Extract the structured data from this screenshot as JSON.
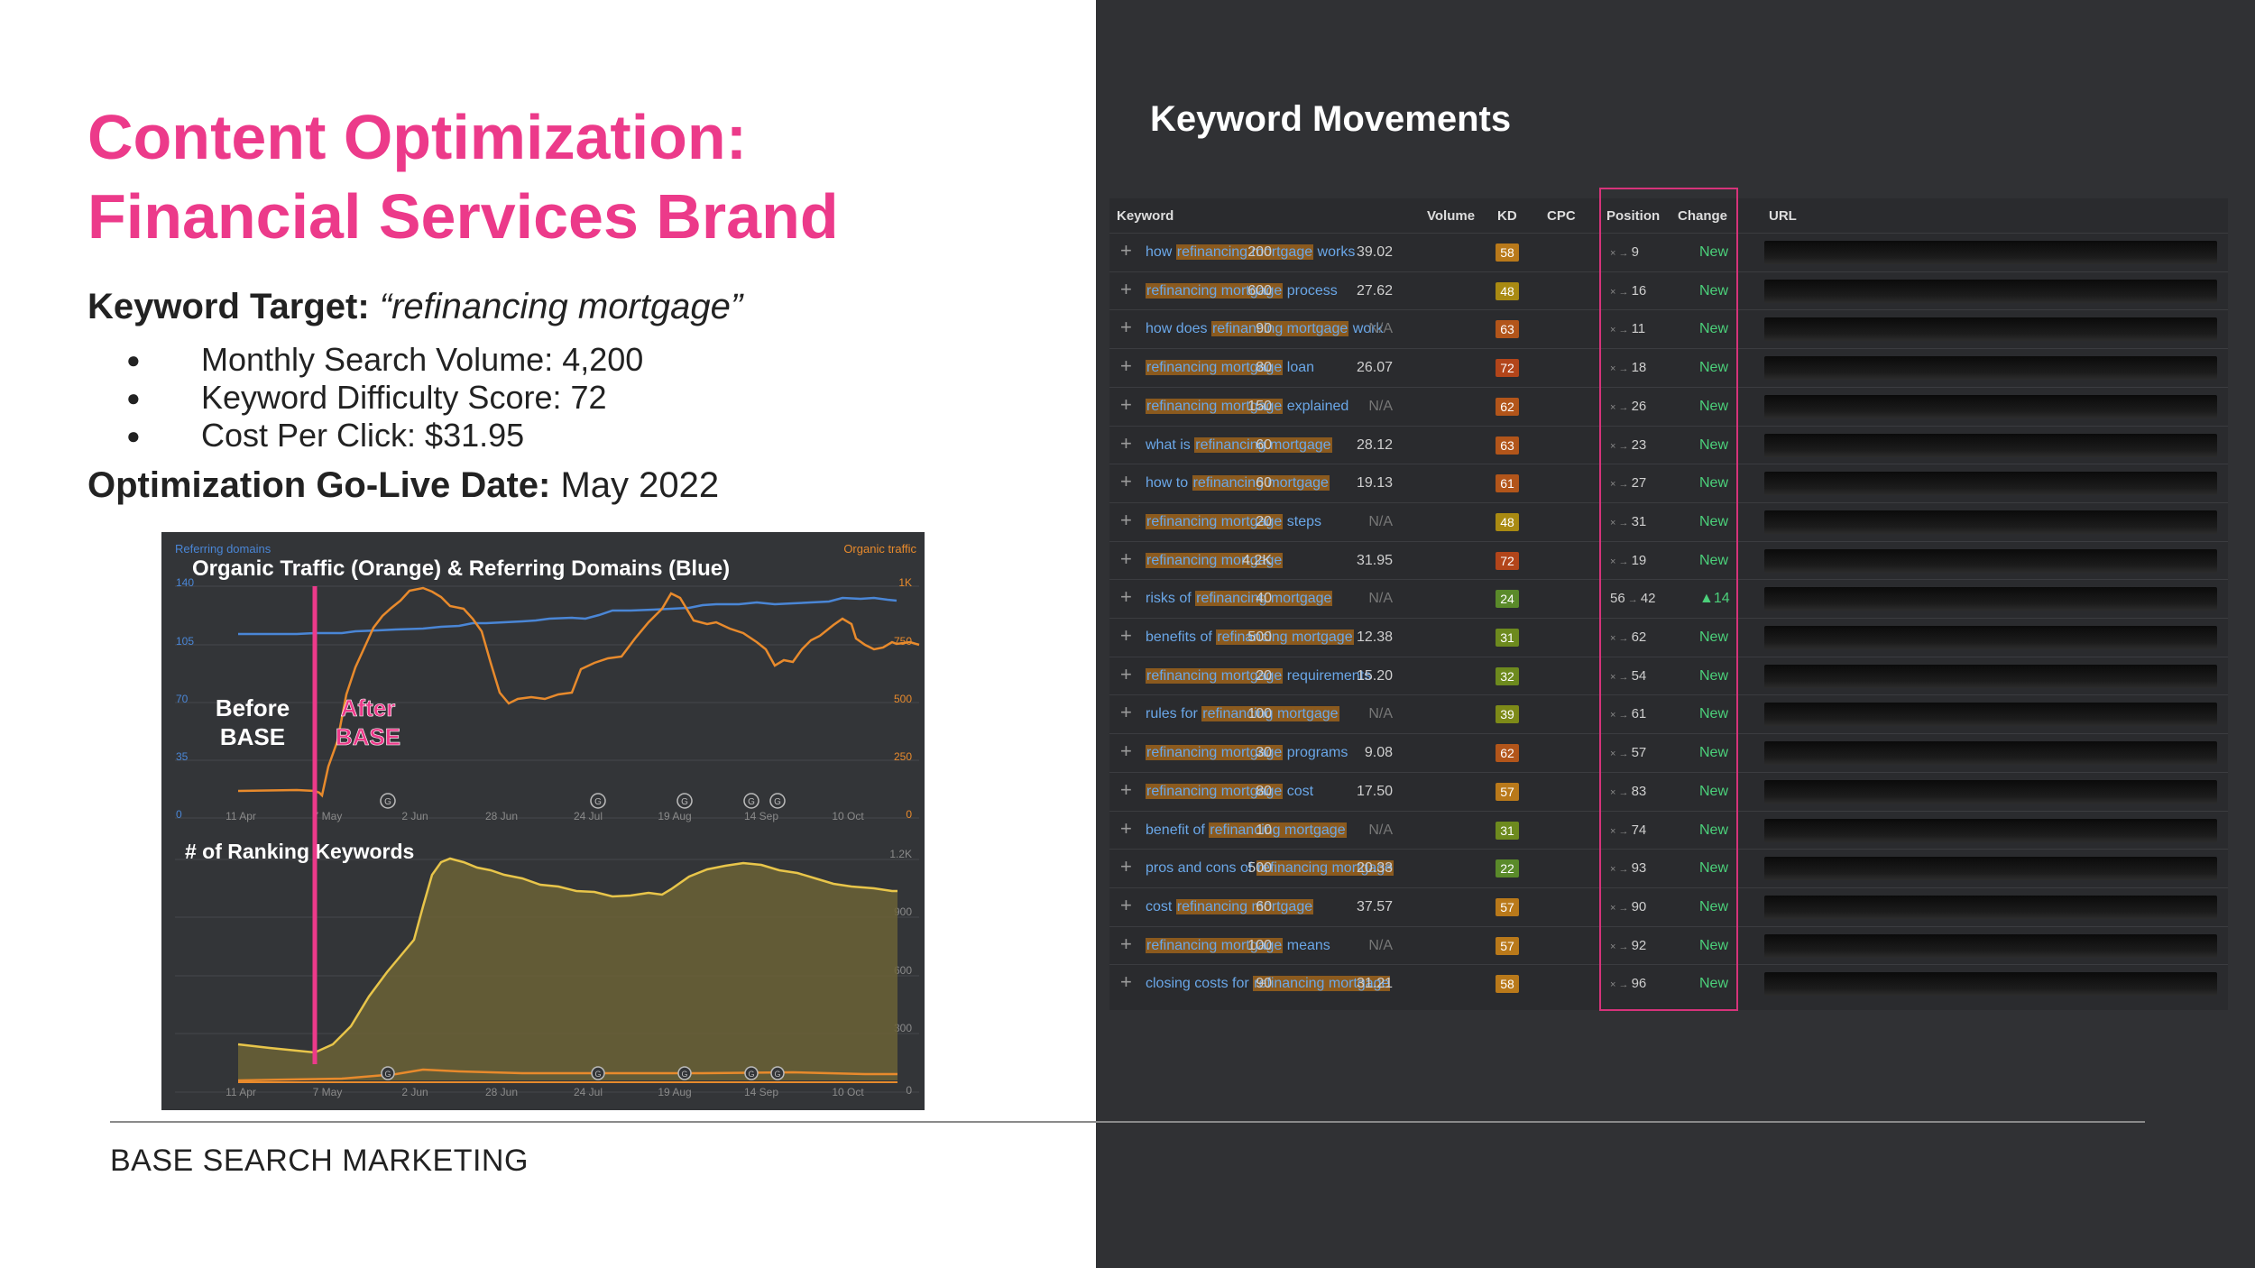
{
  "slide": {
    "title_line1": "Content Optimization:",
    "title_line2": "Financial Services Brand",
    "keyword_target_label": "Keyword Target: ",
    "keyword_target_value": "“refinancing mortgage”",
    "bullets": [
      "Monthly Search Volume: 4,200",
      "Keyword Difficulty Score: 72",
      "Cost Per Click: $31.95"
    ],
    "golive_label": "Optimization Go-Live Date:",
    "golive_value": " May 2022",
    "footer": "BASE SEARCH MARKETING"
  },
  "traffic_chart": {
    "label_left": "Referring domains",
    "label_right": "Organic traffic",
    "title": "Organic Traffic (Orange) & Referring Domains (Blue)",
    "before_label": "Before\nBASE",
    "after_label": "After\nBASE",
    "left_ticks": [
      "140",
      "105",
      "70",
      "35",
      "0"
    ],
    "right_ticks": [
      "1K",
      "750",
      "500",
      "250",
      "0"
    ],
    "x_ticks": [
      "11 Apr",
      "7 May",
      "2 Jun",
      "28 Jun",
      "24 Jul",
      "19 Aug",
      "14 Sep",
      "10 Oct"
    ],
    "colors": {
      "traffic": "#e88a2c",
      "domains": "#4a86d6",
      "marker": "#ec3a8a"
    }
  },
  "keywords_chart": {
    "title": "# of Ranking Keywords",
    "right_ticks": [
      "1.2K",
      "900",
      "600",
      "300",
      "0"
    ],
    "x_ticks": [
      "11 Apr",
      "7 May",
      "2 Jun",
      "28 Jun",
      "24 Jul",
      "19 Aug",
      "14 Sep",
      "10 Oct"
    ],
    "colors": {
      "area": "#e8c54a",
      "lower": "#e88a2c"
    }
  },
  "keyword_movements": {
    "title": "Keyword Movements",
    "columns": [
      "Keyword",
      "Volume",
      "KD",
      "CPC",
      "Position",
      "Change",
      "URL"
    ],
    "rows": [
      {
        "pre": "how ",
        "hl": "refinancing mortgage",
        "post": " works",
        "volume": "200",
        "kd": "58",
        "kd_color": "#b9791a",
        "cpc": "39.02",
        "from": "×",
        "to": "9",
        "change": "New"
      },
      {
        "pre": "",
        "hl": "refinancing mortgage",
        "post": " process",
        "volume": "600",
        "kd": "48",
        "kd_color": "#a98a12",
        "cpc": "27.62",
        "from": "×",
        "to": "16",
        "change": "New"
      },
      {
        "pre": "how does ",
        "hl": "refinancing mortgage",
        "post": " work",
        "volume": "90",
        "kd": "63",
        "kd_color": "#b2551a",
        "cpc": "N/A",
        "from": "×",
        "to": "11",
        "change": "New"
      },
      {
        "pre": "",
        "hl": "refinancing mortgage",
        "post": " loan",
        "volume": "80",
        "kd": "72",
        "kd_color": "#b2451a",
        "cpc": "26.07",
        "from": "×",
        "to": "18",
        "change": "New"
      },
      {
        "pre": "",
        "hl": "refinancing mortgage",
        "post": " explained",
        "volume": "150",
        "kd": "62",
        "kd_color": "#b2551a",
        "cpc": "N/A",
        "from": "×",
        "to": "26",
        "change": "New"
      },
      {
        "pre": "what is ",
        "hl": "refinancing mortgage",
        "post": "",
        "volume": "60",
        "kd": "63",
        "kd_color": "#b2551a",
        "cpc": "28.12",
        "from": "×",
        "to": "23",
        "change": "New"
      },
      {
        "pre": "how to ",
        "hl": "refinancing mortgage",
        "post": "",
        "volume": "60",
        "kd": "61",
        "kd_color": "#b2551a",
        "cpc": "19.13",
        "from": "×",
        "to": "27",
        "change": "New"
      },
      {
        "pre": "",
        "hl": "refinancing mortgage",
        "post": " steps",
        "volume": "20",
        "kd": "48",
        "kd_color": "#a98a12",
        "cpc": "N/A",
        "from": "×",
        "to": "31",
        "change": "New"
      },
      {
        "pre": "",
        "hl": "refinancing mortgage",
        "post": "",
        "volume": "4.2K",
        "kd": "72",
        "kd_color": "#b2451a",
        "cpc": "31.95",
        "from": "×",
        "to": "19",
        "change": "New"
      },
      {
        "pre": "risks of ",
        "hl": "refinancing mortgage",
        "post": "",
        "volume": "40",
        "kd": "24",
        "kd_color": "#5a8a2a",
        "cpc": "N/A",
        "from": "56",
        "to": "42",
        "change": "▲14"
      },
      {
        "pre": "benefits of ",
        "hl": "refinancing mortgage",
        "post": "",
        "volume": "500",
        "kd": "31",
        "kd_color": "#6d8a1e",
        "cpc": "12.38",
        "from": "×",
        "to": "62",
        "change": "New"
      },
      {
        "pre": "",
        "hl": "refinancing mortgage",
        "post": " requirements",
        "volume": "20",
        "kd": "32",
        "kd_color": "#6d8a1e",
        "cpc": "15.20",
        "from": "×",
        "to": "54",
        "change": "New"
      },
      {
        "pre": "rules for ",
        "hl": "refinancing mortgage",
        "post": "",
        "volume": "100",
        "kd": "39",
        "kd_color": "#7d8a18",
        "cpc": "N/A",
        "from": "×",
        "to": "61",
        "change": "New"
      },
      {
        "pre": "",
        "hl": "refinancing mortgage",
        "post": " programs",
        "volume": "30",
        "kd": "62",
        "kd_color": "#b2551a",
        "cpc": "9.08",
        "from": "×",
        "to": "57",
        "change": "New"
      },
      {
        "pre": "",
        "hl": "refinancing mortgage",
        "post": " cost",
        "volume": "80",
        "kd": "57",
        "kd_color": "#b9791a",
        "cpc": "17.50",
        "from": "×",
        "to": "83",
        "change": "New"
      },
      {
        "pre": "benefit of ",
        "hl": "refinancing mortgage",
        "post": "",
        "volume": "10",
        "kd": "31",
        "kd_color": "#6d8a1e",
        "cpc": "N/A",
        "from": "×",
        "to": "74",
        "change": "New"
      },
      {
        "pre": "pros and cons of ",
        "hl": "refinancing mortgage",
        "post": "",
        "volume": "500",
        "kd": "22",
        "kd_color": "#5a8a2a",
        "cpc": "20.33",
        "from": "×",
        "to": "93",
        "change": "New"
      },
      {
        "pre": "cost ",
        "hl": "refinancing mortgage",
        "post": "",
        "volume": "60",
        "kd": "57",
        "kd_color": "#b9791a",
        "cpc": "37.57",
        "from": "×",
        "to": "90",
        "change": "New"
      },
      {
        "pre": "",
        "hl": "refinancing mortgage",
        "post": " means",
        "volume": "100",
        "kd": "57",
        "kd_color": "#b9791a",
        "cpc": "N/A",
        "from": "×",
        "to": "92",
        "change": "New"
      },
      {
        "pre": "closing costs for ",
        "hl": "refinancing mortgage",
        "post": "",
        "volume": "90",
        "kd": "58",
        "kd_color": "#b9791a",
        "cpc": "31.21",
        "from": "×",
        "to": "96",
        "change": "New"
      }
    ]
  }
}
